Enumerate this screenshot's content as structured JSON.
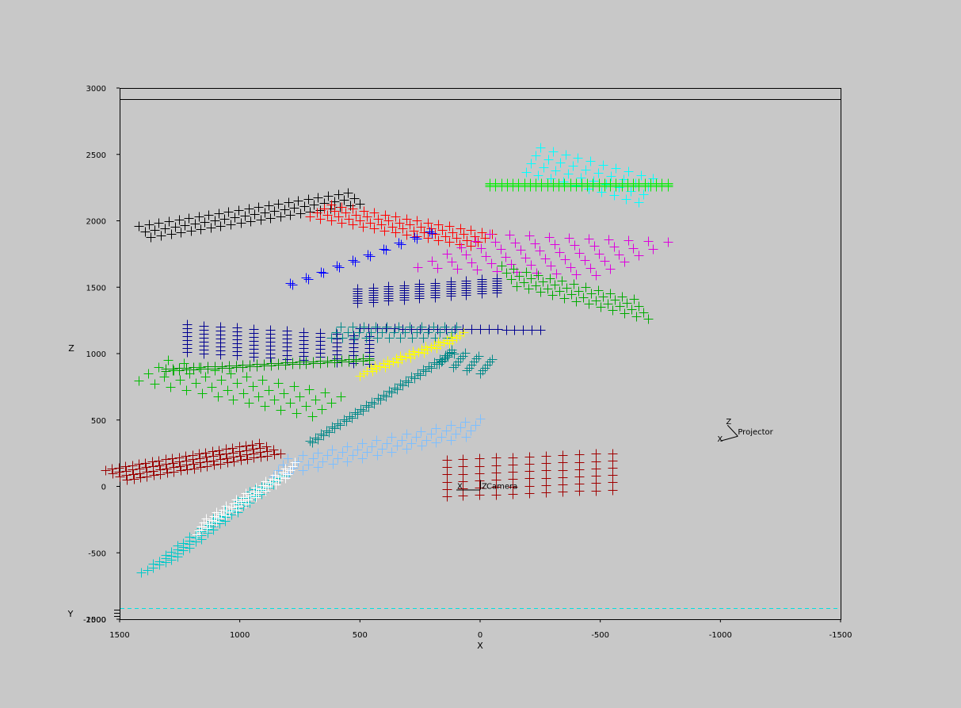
{
  "chart_data": {
    "type": "scatter",
    "title": "",
    "xlabel": "X",
    "ylabel": "Z",
    "side_axis_label": "Y",
    "xlim": [
      1500,
      -1500
    ],
    "ylim": [
      -1000,
      3000
    ],
    "x_ticks": [
      "1500",
      "1000",
      "500",
      "0",
      "-500",
      "-1000",
      "-1500"
    ],
    "y_ticks": [
      "3000",
      "2500",
      "2000",
      "1500",
      "1000",
      "500",
      "0",
      "-500",
      "-1000"
    ],
    "side_tick": "2500",
    "marker": "+",
    "grid": false,
    "annotations": {
      "camera": {
        "label": "Camera",
        "axis_x": "X",
        "axis_z": "Z",
        "x": 0,
        "z": 0
      },
      "projector": {
        "label": "Projector",
        "axis_x": "X",
        "axis_z": "Z",
        "x": -1000,
        "z": 330
      }
    },
    "series": [
      {
        "color": "#000000",
        "cols": 22,
        "rows": 3,
        "x0": 1370,
        "z0": 1880,
        "x1": 500,
        "z1": 2130,
        "dx": 25,
        "dz": 40
      },
      {
        "color": "#ff0000",
        "cols": 16,
        "rows": 4,
        "x0": 620,
        "z0": 2120,
        "x1": -50,
        "z1": 1900,
        "dx": 30,
        "dz": -30
      },
      {
        "color": "#0000ff",
        "cols": 10,
        "rows": 2,
        "x0": 780,
        "z0": 1520,
        "x1": 200,
        "z1": 1910,
        "dx": 10,
        "dz": 10
      },
      {
        "color": "#00ffff",
        "cols": 10,
        "rows": 4,
        "x0": -250,
        "z0": 2550,
        "x1": -720,
        "z1": 2320,
        "dx": 20,
        "dz": -60
      },
      {
        "color": "#00ee00",
        "cols": 32,
        "rows": 3,
        "x0": -40,
        "z0": 2260,
        "x1": -780,
        "z1": 2260,
        "dx": 0,
        "dz": 12
      },
      {
        "color": "#dd00dd",
        "cols": 10,
        "rows": 6,
        "x0": -40,
        "z0": 1900,
        "x1": -780,
        "z1": 1840,
        "dx": 60,
        "dz": -50
      },
      {
        "color": "#000090",
        "cols": 10,
        "rows": 7,
        "x0": 510,
        "z0": 1380,
        "x1": -70,
        "z1": 1460,
        "dx": 0,
        "dz": 18
      },
      {
        "color": "#00aa00",
        "cols": 12,
        "rows": 4,
        "x0": -150,
        "z0": 1510,
        "x1": -700,
        "z1": 1260,
        "dx": 20,
        "dz": 50
      },
      {
        "color": "#000090",
        "cols": 12,
        "rows": 8,
        "x0": 1220,
        "z0": 1220,
        "x1": 460,
        "z1": 1130,
        "dx": 0,
        "dz": -30
      },
      {
        "color": "#000090",
        "cols": 22,
        "rows": 1,
        "x0": 500,
        "z0": 1190,
        "x1": -250,
        "z1": 1180,
        "dx": 0,
        "dz": 0
      },
      {
        "color": "#008888",
        "cols": 11,
        "rows": 3,
        "x0": 580,
        "z0": 1200,
        "x1": 100,
        "z1": 1200,
        "dx": 20,
        "dz": -40
      },
      {
        "color": "#009900",
        "cols": 30,
        "rows": 2,
        "x0": 1310,
        "z0": 870,
        "x1": 460,
        "z1": 950,
        "dx": 0,
        "dz": 15
      },
      {
        "color": "#00bb00",
        "cols": 12,
        "rows": 4,
        "x0": 1300,
        "z0": 950,
        "x1": 580,
        "z1": 680,
        "dx": 40,
        "dz": -50
      },
      {
        "color": "#ffff00",
        "cols": 8,
        "rows": 5,
        "x0": 500,
        "z0": 830,
        "x1": 130,
        "z1": 1080,
        "dx": -15,
        "dz": 20
      },
      {
        "color": "#008888",
        "cols": 4,
        "rows": 6,
        "x0": 170,
        "z0": 920,
        "x1": 0,
        "z1": 850,
        "dx": -10,
        "dz": 22
      },
      {
        "color": "#008888",
        "cols": 26,
        "rows": 2,
        "x0": 700,
        "z0": 330,
        "x1": 110,
        "z1": 1000,
        "dx": 10,
        "dz": 12
      },
      {
        "color": "#7dbfff",
        "cols": 14,
        "rows": 4,
        "x0": 800,
        "z0": 210,
        "x1": 0,
        "z1": 510,
        "dx": 20,
        "dz": -45
      },
      {
        "color": "#a00000",
        "cols": 11,
        "rows": 6,
        "x0": 140,
        "z0": 200,
        "x1": -550,
        "z1": 250,
        "dx": 0,
        "dz": -55
      },
      {
        "color": "#990000",
        "cols": 24,
        "rows": 4,
        "x0": 1470,
        "z0": 50,
        "x1": 830,
        "z1": 250,
        "dx": 30,
        "dz": 25
      },
      {
        "color": "#00c8c8",
        "cols": 10,
        "rows": 7,
        "x0": 1410,
        "z0": -650,
        "x1": 960,
        "z1": -40,
        "dx": -25,
        "dz": 20
      },
      {
        "color": "#ffffff",
        "cols": 10,
        "rows": 5,
        "x0": 1180,
        "z0": -360,
        "x1": 810,
        "z1": 60,
        "dx": -10,
        "dz": 30
      }
    ]
  }
}
